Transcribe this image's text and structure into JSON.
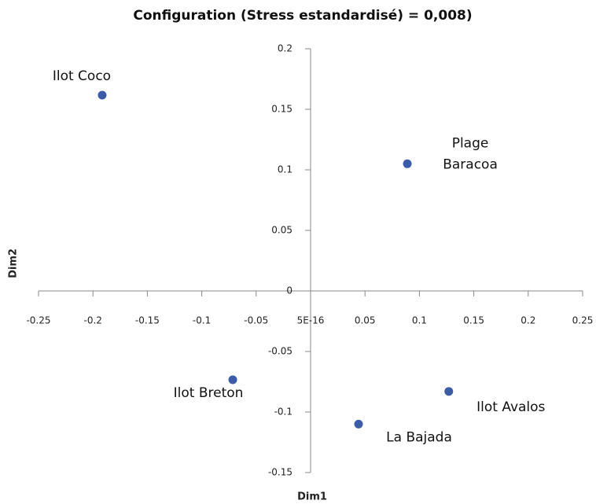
{
  "chart_data": {
    "type": "scatter",
    "title": "Configuration (Stress estandardisé) = 0,008)",
    "xlabel": "Dim1",
    "ylabel": "Dim2",
    "series": [
      {
        "color": "#3a5ca9",
        "labels": [
          [
            "Ilot Coco"
          ],
          [
            "Plage",
            "Baracoa"
          ],
          [
            "Ilot Breton"
          ],
          [
            "La Bajada"
          ],
          [
            "Ilot Avalos"
          ]
        ],
        "x": [
          -0.1915,
          0.0889,
          -0.0715,
          0.0441,
          0.127
        ],
        "values": [
          0.1617,
          0.105,
          -0.0734,
          -0.11,
          -0.083
        ]
      }
    ],
    "xlim": [
      -0.25,
      0.25
    ],
    "xticks": [
      -0.25,
      -0.2,
      -0.15,
      -0.1,
      -0.05,
      {
        "value": 5e-16,
        "label": "5E-16"
      },
      0.05,
      0.1,
      0.15,
      0.2,
      0.25
    ],
    "ylim": [
      -0.15,
      0.2
    ],
    "yticks": [
      -0.15,
      -0.1,
      -0.05,
      0,
      0.05,
      0.1,
      0.15,
      0.2
    ]
  }
}
